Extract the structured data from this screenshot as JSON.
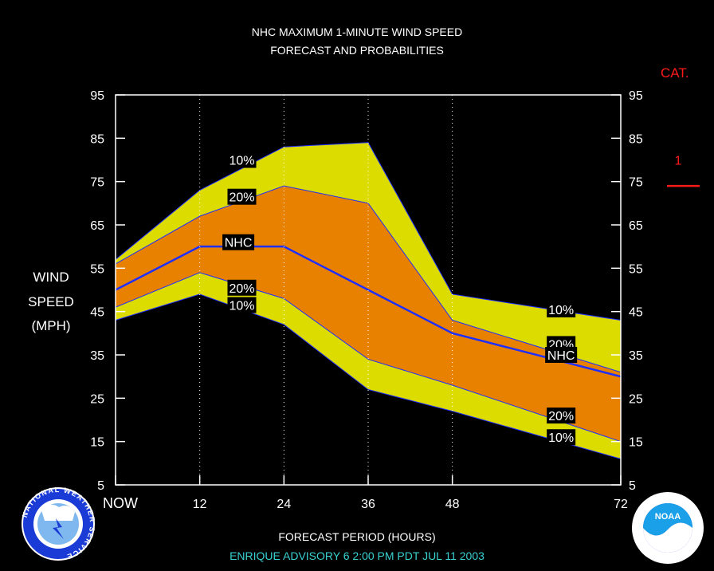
{
  "chart_data": {
    "type": "area",
    "title": "NHC MAXIMUM 1-MINUTE WIND SPEED",
    "subtitle": "FORECAST AND PROBABILITIES",
    "xlabel": "FORECAST PERIOD (HOURS)",
    "ylabel": [
      "WIND",
      "SPEED",
      "(MPH)"
    ],
    "x": [
      0,
      12,
      24,
      36,
      48,
      72
    ],
    "x_tick_labels": [
      "NOW",
      "12",
      "24",
      "36",
      "48",
      "72"
    ],
    "xlim": [
      0,
      72
    ],
    "ylim": [
      5,
      95
    ],
    "y_ticks": [
      5,
      15,
      25,
      35,
      45,
      55,
      65,
      75,
      85,
      95
    ],
    "grid": "vertical dotted at forecast hours",
    "series": [
      {
        "name": "10%",
        "role": "upper-10",
        "color": "#dcdc00",
        "values": [
          57,
          73,
          83,
          84,
          49,
          43
        ]
      },
      {
        "name": "20%",
        "role": "upper-20",
        "color": "#e88000",
        "values": [
          56,
          67,
          74,
          70,
          43,
          31
        ]
      },
      {
        "name": "NHC",
        "role": "forecast",
        "color": "#1f2fff",
        "values": [
          50,
          60,
          60,
          50,
          40,
          30
        ]
      },
      {
        "name": "20%",
        "role": "lower-20",
        "color": "#e88000",
        "values": [
          46,
          54,
          48,
          34,
          28,
          15
        ]
      },
      {
        "name": "10%",
        "role": "lower-10",
        "color": "#dcdc00",
        "values": [
          43,
          49,
          42,
          27,
          22,
          11
        ]
      }
    ],
    "annotations": [
      {
        "text": "10%",
        "x": 18,
        "y": 80
      },
      {
        "text": "20%",
        "x": 18,
        "y": 71.5
      },
      {
        "text": "NHC",
        "x": 17.5,
        "y": 61
      },
      {
        "text": "20%",
        "x": 18,
        "y": 50.5
      },
      {
        "text": "10%",
        "x": 18,
        "y": 46.5
      },
      {
        "text": "10%",
        "x": 63.5,
        "y": 45.5
      },
      {
        "text": "20%",
        "x": 63.5,
        "y": 37.5
      },
      {
        "text": "NHC",
        "x": 63.5,
        "y": 35
      },
      {
        "text": "20%",
        "x": 63.5,
        "y": 21
      },
      {
        "text": "10%",
        "x": 63.5,
        "y": 16
      }
    ],
    "category_scale": {
      "label": "CAT.",
      "color": "#ff1a1a",
      "levels": [
        {
          "label": "1",
          "threshold_mph": 74
        }
      ]
    }
  },
  "footer": {
    "text": "ENRIQUE   ADVISORY  6 2:00  PM  PDT  JUL  11  2003",
    "color": "#3ad0d0"
  },
  "logos": {
    "left": {
      "icon": "nws-logo-icon",
      "text": "NATIONAL WEATHER SERVICE"
    },
    "right": {
      "icon": "noaa-logo-icon",
      "text": "NOAA"
    }
  }
}
